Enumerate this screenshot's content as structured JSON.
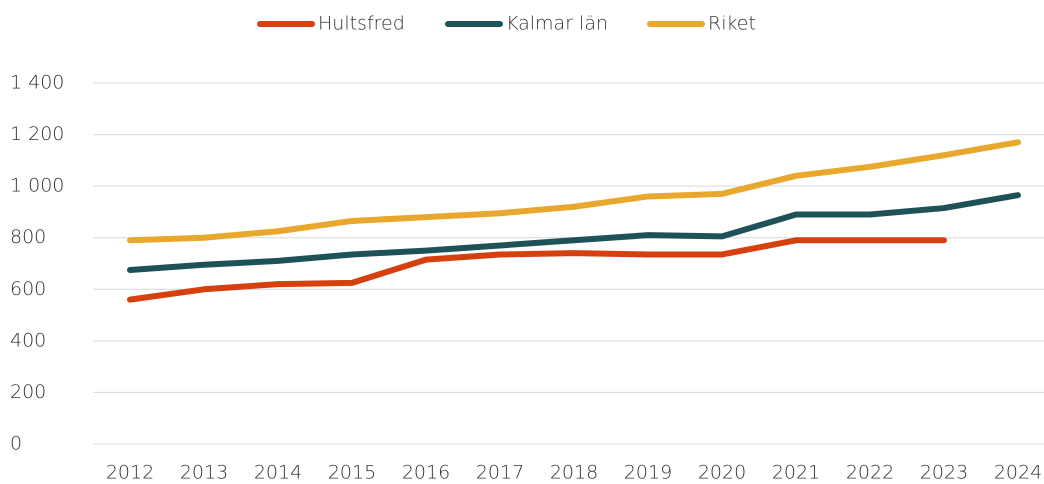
{
  "chart_data": {
    "type": "line",
    "categories": [
      "2012",
      "2013",
      "2014",
      "2015",
      "2016",
      "2017",
      "2018",
      "2019",
      "2020",
      "2021",
      "2022",
      "2023",
      "2024"
    ],
    "series": [
      {
        "name": "Hultsfred",
        "color": "#d6400f",
        "values": [
          560,
          600,
          620,
          625,
          715,
          735,
          740,
          735,
          735,
          790,
          790,
          790,
          null
        ]
      },
      {
        "name": "Kalmar län",
        "color": "#1f5258",
        "values": [
          675,
          695,
          710,
          735,
          750,
          770,
          790,
          810,
          805,
          890,
          890,
          915,
          965
        ]
      },
      {
        "name": "Riket",
        "color": "#e8a82e",
        "values": [
          790,
          800,
          825,
          865,
          880,
          895,
          920,
          960,
          970,
          1040,
          1075,
          1120,
          1170
        ]
      }
    ],
    "ylim": [
      0,
      1400
    ],
    "yticks": [
      0,
      200,
      400,
      600,
      800,
      {
        "value": 1000,
        "label": "1 000"
      },
      {
        "value": 1200,
        "label": "1 200"
      },
      {
        "value": 1400,
        "label": "1 400"
      }
    ],
    "grid": true,
    "legend": "top"
  }
}
